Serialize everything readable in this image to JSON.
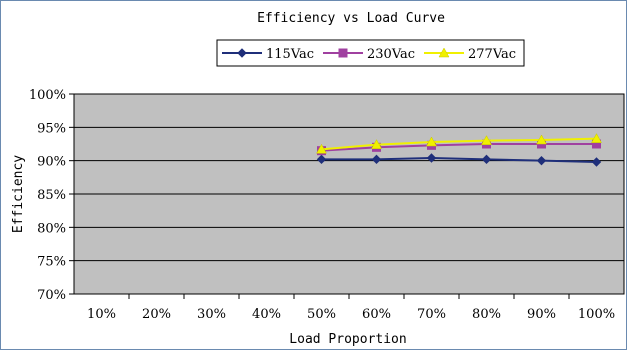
{
  "chart_data": {
    "type": "line",
    "title": "Efficiency vs Load Curve",
    "xlabel": "Load Proportion",
    "ylabel": "Efficiency",
    "categories": [
      "10%",
      "20%",
      "30%",
      "40%",
      "50%",
      "60%",
      "70%",
      "80%",
      "90%",
      "100%"
    ],
    "y_ticks": [
      "70%",
      "75%",
      "80%",
      "85%",
      "90%",
      "95%",
      "100%"
    ],
    "ylim": [
      70,
      100
    ],
    "grid": true,
    "legend_position": "top",
    "series": [
      {
        "name": "115Vac",
        "color": "#1f2f7a",
        "marker": "diamond",
        "values": [
          null,
          null,
          null,
          null,
          90.2,
          90.2,
          90.4,
          90.2,
          90.0,
          89.8
        ]
      },
      {
        "name": "230Vac",
        "color": "#a040a0",
        "marker": "square",
        "values": [
          null,
          null,
          null,
          null,
          91.5,
          92.0,
          92.3,
          92.5,
          92.5,
          92.5
        ]
      },
      {
        "name": "277Vac",
        "color": "#f0f000",
        "marker": "triangle",
        "values": [
          null,
          null,
          null,
          null,
          91.7,
          92.4,
          92.8,
          93.0,
          93.1,
          93.3
        ]
      }
    ]
  }
}
